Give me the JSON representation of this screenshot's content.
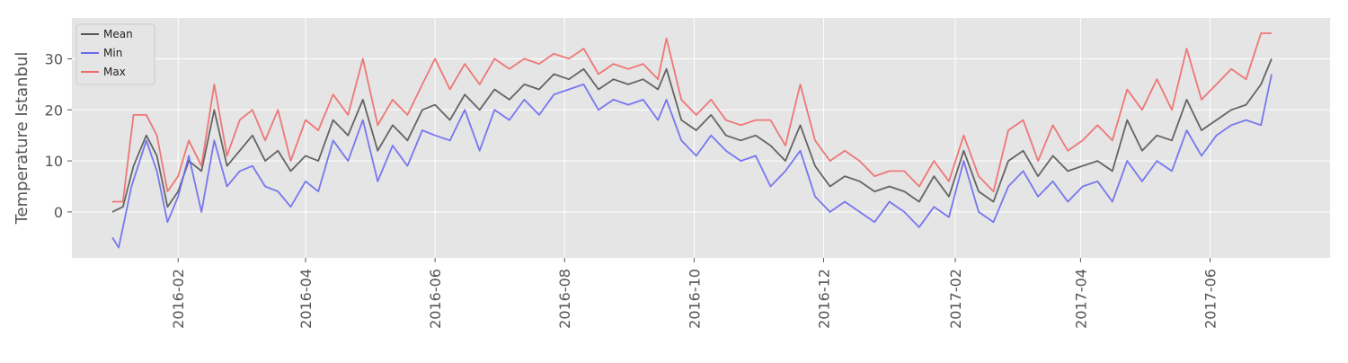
{
  "chart_data": {
    "type": "line",
    "xlabel": "",
    "ylabel": "Temperature Istanbul",
    "x_range": [
      "2016-01-01",
      "2017-06-30"
    ],
    "ylim": [
      -9,
      38
    ],
    "y_ticks": [
      0,
      10,
      20,
      30
    ],
    "x_ticks": [
      {
        "date": "2016-02-01",
        "label": "2016-02"
      },
      {
        "date": "2016-04-01",
        "label": "2016-04"
      },
      {
        "date": "2016-06-01",
        "label": "2016-06"
      },
      {
        "date": "2016-08-01",
        "label": "2016-08"
      },
      {
        "date": "2016-10-01",
        "label": "2016-10"
      },
      {
        "date": "2016-12-01",
        "label": "2016-12"
      },
      {
        "date": "2017-02-01",
        "label": "2017-02"
      },
      {
        "date": "2017-04-01",
        "label": "2017-04"
      },
      {
        "date": "2017-06-01",
        "label": "2017-06"
      }
    ],
    "grid": true,
    "legend_position": "top-left",
    "background_color": "#e5e5e5",
    "series": [
      {
        "name": "Mean",
        "color": "#555555",
        "points": [
          [
            "2016-01-01",
            0
          ],
          [
            "2016-01-06",
            1
          ],
          [
            "2016-01-11",
            9
          ],
          [
            "2016-01-17",
            15
          ],
          [
            "2016-01-22",
            11
          ],
          [
            "2016-01-27",
            1
          ],
          [
            "2016-02-01",
            4
          ],
          [
            "2016-02-06",
            10
          ],
          [
            "2016-02-12",
            8
          ],
          [
            "2016-02-18",
            20
          ],
          [
            "2016-02-24",
            9
          ],
          [
            "2016-03-01",
            12
          ],
          [
            "2016-03-07",
            15
          ],
          [
            "2016-03-13",
            10
          ],
          [
            "2016-03-19",
            12
          ],
          [
            "2016-03-25",
            8
          ],
          [
            "2016-04-01",
            11
          ],
          [
            "2016-04-07",
            10
          ],
          [
            "2016-04-14",
            18
          ],
          [
            "2016-04-21",
            15
          ],
          [
            "2016-04-28",
            22
          ],
          [
            "2016-05-05",
            12
          ],
          [
            "2016-05-12",
            17
          ],
          [
            "2016-05-19",
            14
          ],
          [
            "2016-05-26",
            20
          ],
          [
            "2016-06-01",
            21
          ],
          [
            "2016-06-08",
            18
          ],
          [
            "2016-06-15",
            23
          ],
          [
            "2016-06-22",
            20
          ],
          [
            "2016-06-29",
            24
          ],
          [
            "2016-07-06",
            22
          ],
          [
            "2016-07-13",
            25
          ],
          [
            "2016-07-20",
            24
          ],
          [
            "2016-07-27",
            27
          ],
          [
            "2016-08-03",
            26
          ],
          [
            "2016-08-10",
            28
          ],
          [
            "2016-08-17",
            24
          ],
          [
            "2016-08-24",
            26
          ],
          [
            "2016-08-31",
            25
          ],
          [
            "2016-09-07",
            26
          ],
          [
            "2016-09-14",
            24
          ],
          [
            "2016-09-18",
            28
          ],
          [
            "2016-09-25",
            18
          ],
          [
            "2016-10-02",
            16
          ],
          [
            "2016-10-09",
            19
          ],
          [
            "2016-10-16",
            15
          ],
          [
            "2016-10-23",
            14
          ],
          [
            "2016-10-30",
            15
          ],
          [
            "2016-11-06",
            13
          ],
          [
            "2016-11-13",
            10
          ],
          [
            "2016-11-20",
            17
          ],
          [
            "2016-11-27",
            9
          ],
          [
            "2016-12-04",
            5
          ],
          [
            "2016-12-11",
            7
          ],
          [
            "2016-12-18",
            6
          ],
          [
            "2016-12-25",
            4
          ],
          [
            "2017-01-01",
            5
          ],
          [
            "2017-01-08",
            4
          ],
          [
            "2017-01-15",
            2
          ],
          [
            "2017-01-22",
            7
          ],
          [
            "2017-01-29",
            3
          ],
          [
            "2017-02-05",
            12
          ],
          [
            "2017-02-12",
            4
          ],
          [
            "2017-02-19",
            2
          ],
          [
            "2017-02-26",
            10
          ],
          [
            "2017-03-05",
            12
          ],
          [
            "2017-03-12",
            7
          ],
          [
            "2017-03-19",
            11
          ],
          [
            "2017-03-26",
            8
          ],
          [
            "2017-04-02",
            9
          ],
          [
            "2017-04-09",
            10
          ],
          [
            "2017-04-16",
            8
          ],
          [
            "2017-04-23",
            18
          ],
          [
            "2017-04-30",
            12
          ],
          [
            "2017-05-07",
            15
          ],
          [
            "2017-05-14",
            14
          ],
          [
            "2017-05-21",
            22
          ],
          [
            "2017-05-28",
            16
          ],
          [
            "2017-06-04",
            18
          ],
          [
            "2017-06-11",
            20
          ],
          [
            "2017-06-18",
            21
          ],
          [
            "2017-06-25",
            25
          ],
          [
            "2017-06-30",
            30
          ]
        ]
      },
      {
        "name": "Min",
        "color": "#6a6af0",
        "points": [
          [
            "2016-01-01",
            -5
          ],
          [
            "2016-01-04",
            -7
          ],
          [
            "2016-01-10",
            5
          ],
          [
            "2016-01-17",
            14
          ],
          [
            "2016-01-22",
            8
          ],
          [
            "2016-01-27",
            -2
          ],
          [
            "2016-02-01",
            3
          ],
          [
            "2016-02-06",
            11
          ],
          [
            "2016-02-12",
            0
          ],
          [
            "2016-02-18",
            14
          ],
          [
            "2016-02-24",
            5
          ],
          [
            "2016-03-01",
            8
          ],
          [
            "2016-03-07",
            9
          ],
          [
            "2016-03-13",
            5
          ],
          [
            "2016-03-19",
            4
          ],
          [
            "2016-03-25",
            1
          ],
          [
            "2016-04-01",
            6
          ],
          [
            "2016-04-07",
            4
          ],
          [
            "2016-04-14",
            14
          ],
          [
            "2016-04-21",
            10
          ],
          [
            "2016-04-28",
            18
          ],
          [
            "2016-05-05",
            6
          ],
          [
            "2016-05-12",
            13
          ],
          [
            "2016-05-19",
            9
          ],
          [
            "2016-05-26",
            16
          ],
          [
            "2016-06-01",
            15
          ],
          [
            "2016-06-08",
            14
          ],
          [
            "2016-06-15",
            20
          ],
          [
            "2016-06-22",
            12
          ],
          [
            "2016-06-29",
            20
          ],
          [
            "2016-07-06",
            18
          ],
          [
            "2016-07-13",
            22
          ],
          [
            "2016-07-20",
            19
          ],
          [
            "2016-07-27",
            23
          ],
          [
            "2016-08-03",
            24
          ],
          [
            "2016-08-10",
            25
          ],
          [
            "2016-08-17",
            20
          ],
          [
            "2016-08-24",
            22
          ],
          [
            "2016-08-31",
            21
          ],
          [
            "2016-09-07",
            22
          ],
          [
            "2016-09-14",
            18
          ],
          [
            "2016-09-18",
            22
          ],
          [
            "2016-09-25",
            14
          ],
          [
            "2016-10-02",
            11
          ],
          [
            "2016-10-09",
            15
          ],
          [
            "2016-10-16",
            12
          ],
          [
            "2016-10-23",
            10
          ],
          [
            "2016-10-30",
            11
          ],
          [
            "2016-11-06",
            5
          ],
          [
            "2016-11-13",
            8
          ],
          [
            "2016-11-20",
            12
          ],
          [
            "2016-11-27",
            3
          ],
          [
            "2016-12-04",
            0
          ],
          [
            "2016-12-11",
            2
          ],
          [
            "2016-12-18",
            0
          ],
          [
            "2016-12-25",
            -2
          ],
          [
            "2017-01-01",
            2
          ],
          [
            "2017-01-08",
            0
          ],
          [
            "2017-01-15",
            -3
          ],
          [
            "2017-01-22",
            1
          ],
          [
            "2017-01-29",
            -1
          ],
          [
            "2017-02-05",
            10
          ],
          [
            "2017-02-12",
            0
          ],
          [
            "2017-02-19",
            -2
          ],
          [
            "2017-02-26",
            5
          ],
          [
            "2017-03-05",
            8
          ],
          [
            "2017-03-12",
            3
          ],
          [
            "2017-03-19",
            6
          ],
          [
            "2017-03-26",
            2
          ],
          [
            "2017-04-02",
            5
          ],
          [
            "2017-04-09",
            6
          ],
          [
            "2017-04-16",
            2
          ],
          [
            "2017-04-23",
            10
          ],
          [
            "2017-04-30",
            6
          ],
          [
            "2017-05-07",
            10
          ],
          [
            "2017-05-14",
            8
          ],
          [
            "2017-05-21",
            16
          ],
          [
            "2017-05-28",
            11
          ],
          [
            "2017-06-04",
            15
          ],
          [
            "2017-06-11",
            17
          ],
          [
            "2017-06-18",
            18
          ],
          [
            "2017-06-25",
            17
          ],
          [
            "2017-06-30",
            27
          ]
        ]
      },
      {
        "name": "Max",
        "color": "#ee6a6a",
        "points": [
          [
            "2016-01-01",
            2
          ],
          [
            "2016-01-06",
            2
          ],
          [
            "2016-01-11",
            19
          ],
          [
            "2016-01-17",
            19
          ],
          [
            "2016-01-22",
            15
          ],
          [
            "2016-01-27",
            4
          ],
          [
            "2016-02-01",
            7
          ],
          [
            "2016-02-06",
            14
          ],
          [
            "2016-02-12",
            9
          ],
          [
            "2016-02-18",
            25
          ],
          [
            "2016-02-24",
            11
          ],
          [
            "2016-03-01",
            18
          ],
          [
            "2016-03-07",
            20
          ],
          [
            "2016-03-13",
            14
          ],
          [
            "2016-03-19",
            20
          ],
          [
            "2016-03-25",
            10
          ],
          [
            "2016-04-01",
            18
          ],
          [
            "2016-04-07",
            16
          ],
          [
            "2016-04-14",
            23
          ],
          [
            "2016-04-21",
            19
          ],
          [
            "2016-04-28",
            30
          ],
          [
            "2016-05-05",
            17
          ],
          [
            "2016-05-12",
            22
          ],
          [
            "2016-05-19",
            19
          ],
          [
            "2016-05-26",
            25
          ],
          [
            "2016-06-01",
            30
          ],
          [
            "2016-06-08",
            24
          ],
          [
            "2016-06-15",
            29
          ],
          [
            "2016-06-22",
            25
          ],
          [
            "2016-06-29",
            30
          ],
          [
            "2016-07-06",
            28
          ],
          [
            "2016-07-13",
            30
          ],
          [
            "2016-07-20",
            29
          ],
          [
            "2016-07-27",
            31
          ],
          [
            "2016-08-03",
            30
          ],
          [
            "2016-08-10",
            32
          ],
          [
            "2016-08-17",
            27
          ],
          [
            "2016-08-24",
            29
          ],
          [
            "2016-08-31",
            28
          ],
          [
            "2016-09-07",
            29
          ],
          [
            "2016-09-14",
            26
          ],
          [
            "2016-09-18",
            34
          ],
          [
            "2016-09-25",
            22
          ],
          [
            "2016-10-02",
            19
          ],
          [
            "2016-10-09",
            22
          ],
          [
            "2016-10-16",
            18
          ],
          [
            "2016-10-23",
            17
          ],
          [
            "2016-10-30",
            18
          ],
          [
            "2016-11-06",
            18
          ],
          [
            "2016-11-13",
            13
          ],
          [
            "2016-11-20",
            25
          ],
          [
            "2016-11-27",
            14
          ],
          [
            "2016-12-04",
            10
          ],
          [
            "2016-12-11",
            12
          ],
          [
            "2016-12-18",
            10
          ],
          [
            "2016-12-25",
            7
          ],
          [
            "2017-01-01",
            8
          ],
          [
            "2017-01-08",
            8
          ],
          [
            "2017-01-15",
            5
          ],
          [
            "2017-01-22",
            10
          ],
          [
            "2017-01-29",
            6
          ],
          [
            "2017-02-05",
            15
          ],
          [
            "2017-02-12",
            7
          ],
          [
            "2017-02-19",
            4
          ],
          [
            "2017-02-26",
            16
          ],
          [
            "2017-03-05",
            18
          ],
          [
            "2017-03-12",
            10
          ],
          [
            "2017-03-19",
            17
          ],
          [
            "2017-03-26",
            12
          ],
          [
            "2017-04-02",
            14
          ],
          [
            "2017-04-09",
            17
          ],
          [
            "2017-04-16",
            14
          ],
          [
            "2017-04-23",
            24
          ],
          [
            "2017-04-30",
            20
          ],
          [
            "2017-05-07",
            26
          ],
          [
            "2017-05-14",
            20
          ],
          [
            "2017-05-21",
            32
          ],
          [
            "2017-05-28",
            22
          ],
          [
            "2017-06-04",
            25
          ],
          [
            "2017-06-11",
            28
          ],
          [
            "2017-06-18",
            26
          ],
          [
            "2017-06-25",
            35
          ],
          [
            "2017-06-30",
            35
          ]
        ]
      }
    ]
  }
}
